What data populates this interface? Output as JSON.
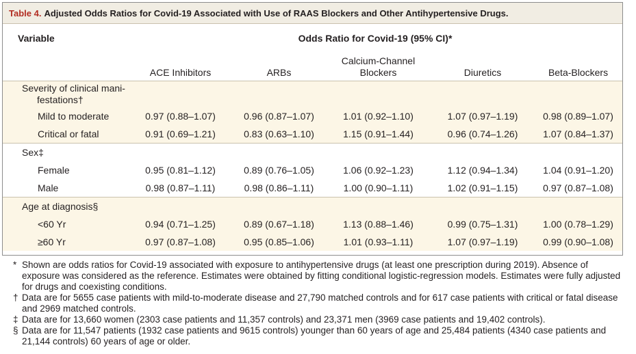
{
  "table": {
    "label": "Table 4.",
    "title": "Adjusted Odds Ratios for Covid-19 Associated with Use of RAAS Blockers and Other Antihypertensive Drugs.",
    "variable_header": "Variable",
    "group_header": "Odds Ratio for Covid-19 (95% CI)*",
    "columns": [
      "ACE Inhibitors",
      "ARBs",
      "Calcium-Channel",
      "Blockers",
      "Diuretics",
      "Beta-Blockers"
    ],
    "sections": [
      {
        "label_line1": "Severity of clinical mani-",
        "label_line2": "festations†",
        "rows": [
          {
            "label": "Mild to moderate",
            "values": [
              "0.97 (0.88–1.07)",
              "0.96 (0.87–1.07)",
              "1.01 (0.92–1.10)",
              "1.07 (0.97–1.19)",
              "0.98 (0.89–1.07)"
            ]
          },
          {
            "label": "Critical or fatal",
            "values": [
              "0.91 (0.69–1.21)",
              "0.83 (0.63–1.10)",
              "1.15 (0.91–1.44)",
              "0.96 (0.74–1.26)",
              "1.07 (0.84–1.37)"
            ]
          }
        ]
      },
      {
        "label_line1": "Sex‡",
        "rows": [
          {
            "label": "Female",
            "values": [
              "0.95 (0.81–1.12)",
              "0.89 (0.76–1.05)",
              "1.06 (0.92–1.23)",
              "1.12 (0.94–1.34)",
              "1.04 (0.91–1.20)"
            ]
          },
          {
            "label": "Male",
            "values": [
              "0.98 (0.87–1.11)",
              "0.98 (0.86–1.11)",
              "1.00 (0.90–1.11)",
              "1.02 (0.91–1.15)",
              "0.97 (0.87–1.08)"
            ]
          }
        ]
      },
      {
        "label_line1": "Age at diagnosis§",
        "rows": [
          {
            "label": "<60 Yr",
            "values": [
              "0.94 (0.71–1.25)",
              "0.89 (0.67–1.18)",
              "1.13 (0.88–1.46)",
              "0.99 (0.75–1.31)",
              "1.00 (0.78–1.29)"
            ]
          },
          {
            "label": "≥60 Yr",
            "values": [
              "0.97 (0.87–1.08)",
              "0.95 (0.85–1.06)",
              "1.01 (0.93–1.11)",
              "1.07 (0.97–1.19)",
              "0.99 (0.90–1.08)"
            ]
          }
        ]
      }
    ]
  },
  "footnotes": [
    {
      "mark": "*",
      "text": "Shown are odds ratios for Covid-19 associated with exposure to antihypertensive drugs (at least one prescription during 2019). Absence of exposure was considered as the reference. Estimates were obtained by fitting conditional logistic-regression models. Estimates were fully adjusted for drugs and coexisting conditions."
    },
    {
      "mark": "†",
      "text": "Data are for 5655 case patients with mild-to-moderate disease and 27,790 matched controls and for 617 case patients with critical or fatal disease and 2969 matched controls."
    },
    {
      "mark": "‡",
      "text": "Data are for 13,660 women (2303 case patients and 11,357 controls) and 23,371 men (3969 case patients and 19,402 controls)."
    },
    {
      "mark": "§",
      "text": "Data are for 11,547 patients (1932 case patients and 9615 controls) younger than 60 years of age and 25,484 patients (4340 case patients and 21,144 controls) 60 years of age or older."
    }
  ]
}
